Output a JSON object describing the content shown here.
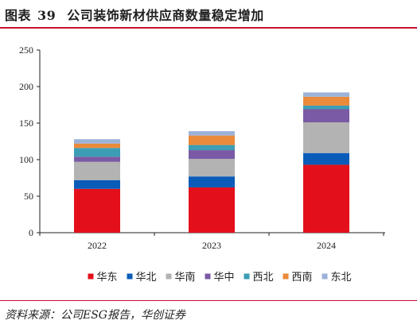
{
  "header": {
    "figure_label": "图表",
    "figure_number": "39",
    "title": "公司装饰新材供应商数量稳定增加"
  },
  "source": "资料来源：公司ESG报告，华创证券",
  "chart_data": {
    "type": "bar",
    "stacked": true,
    "categories": [
      "2022",
      "2023",
      "2024"
    ],
    "series": [
      {
        "name": "华东",
        "color": "#e3101c",
        "values": [
          60,
          62,
          93
        ]
      },
      {
        "name": "华北",
        "color": "#0a5cb8",
        "values": [
          12,
          15,
          16
        ]
      },
      {
        "name": "华南",
        "color": "#b3b3b3",
        "values": [
          25,
          24,
          42
        ]
      },
      {
        "name": "华中",
        "color": "#7a5aa5",
        "values": [
          7,
          12,
          18
        ]
      },
      {
        "name": "西北",
        "color": "#3d9db5",
        "values": [
          12,
          7,
          5
        ]
      },
      {
        "name": "西南",
        "color": "#ea8a3a",
        "values": [
          6,
          13,
          12
        ]
      },
      {
        "name": "东北",
        "color": "#9db2d8",
        "values": [
          6,
          6,
          6
        ]
      }
    ],
    "ylim": [
      0,
      250
    ],
    "yticks": [
      "0",
      "50",
      "100",
      "150",
      "200",
      "250"
    ],
    "grid": false,
    "legend_position": "bottom"
  }
}
